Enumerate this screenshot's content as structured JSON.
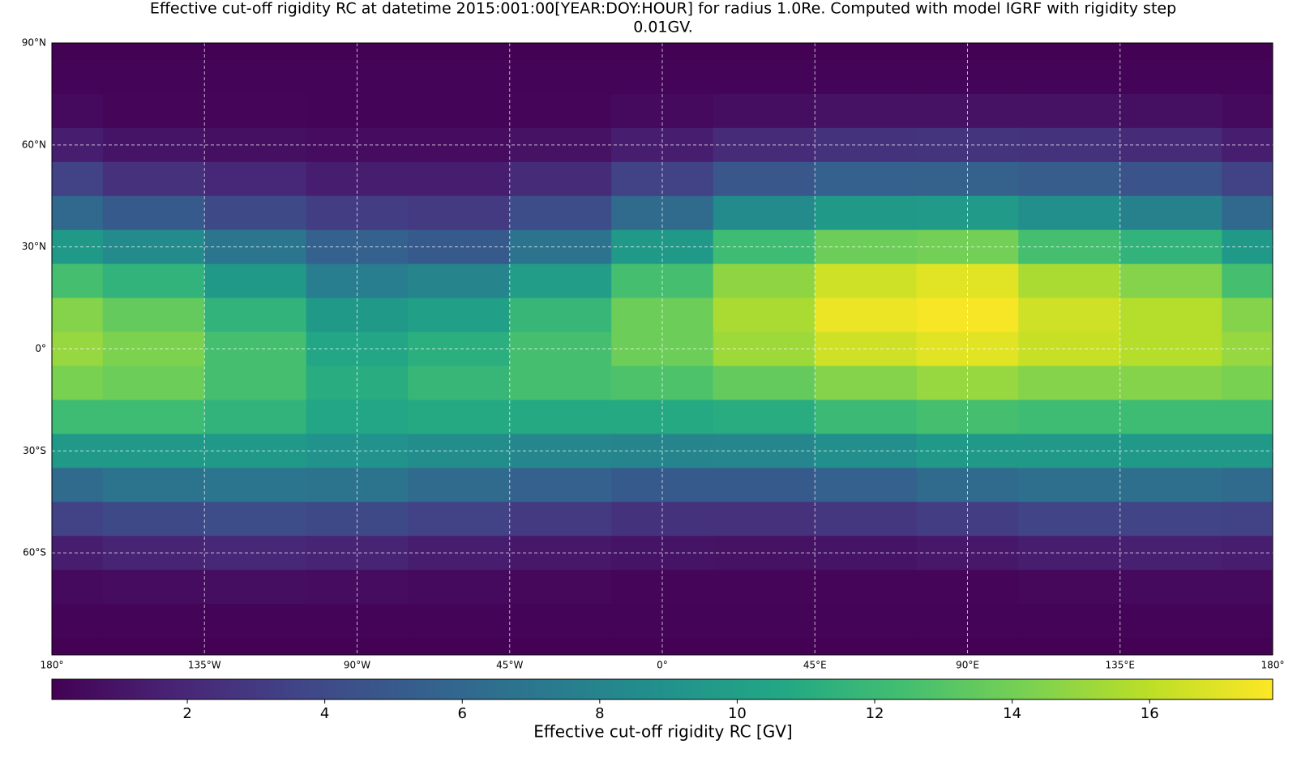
{
  "chart_data": {
    "type": "heatmap",
    "title": [
      "Effective cut-off rigidity RC at datetime 2015:001:00[YEAR:DOY:HOUR] for radius 1.0Re. Computed with model IGRF with rigidity step",
      "0.01GV."
    ],
    "colormap": "viridis",
    "xlim": [
      -180,
      180
    ],
    "ylim": [
      -90,
      90
    ],
    "xticks": [
      {
        "value": -180,
        "label": "180°"
      },
      {
        "value": -135,
        "label": "135°W"
      },
      {
        "value": -90,
        "label": "90°W"
      },
      {
        "value": -45,
        "label": "45°W"
      },
      {
        "value": 0,
        "label": "0°"
      },
      {
        "value": 45,
        "label": "45°E"
      },
      {
        "value": 90,
        "label": "90°E"
      },
      {
        "value": 135,
        "label": "135°E"
      },
      {
        "value": 180,
        "label": "180°"
      }
    ],
    "yticks": [
      {
        "value": 90,
        "label": "90°N"
      },
      {
        "value": 60,
        "label": "60°N"
      },
      {
        "value": 30,
        "label": "30°N"
      },
      {
        "value": 0,
        "label": "0°"
      },
      {
        "value": -30,
        "label": "30°S"
      },
      {
        "value": -60,
        "label": "60°S"
      }
    ],
    "grid": true,
    "lons": [
      -180,
      -150,
      -120,
      -90,
      -60,
      -30,
      0,
      30,
      60,
      90,
      120,
      150,
      180
    ],
    "lats": [
      90,
      80,
      70,
      60,
      50,
      40,
      30,
      20,
      10,
      0,
      -10,
      -20,
      -30,
      -40,
      -50,
      -60,
      -70,
      -80,
      -90
    ],
    "values": [
      [
        0.1,
        0.1,
        0.1,
        0.1,
        0.1,
        0.1,
        0.1,
        0.1,
        0.1,
        0.1,
        0.1,
        0.1,
        0.1
      ],
      [
        0.2,
        0.2,
        0.2,
        0.2,
        0.2,
        0.2,
        0.2,
        0.2,
        0.2,
        0.2,
        0.2,
        0.2,
        0.2
      ],
      [
        0.5,
        0.3,
        0.3,
        0.2,
        0.2,
        0.3,
        0.5,
        0.7,
        0.9,
        0.9,
        0.9,
        0.8,
        0.5
      ],
      [
        1.5,
        1,
        0.8,
        0.6,
        0.6,
        0.9,
        1.5,
        2.2,
        2.6,
        2.7,
        2.6,
        2.2,
        1.5
      ],
      [
        3.5,
        2.5,
        2,
        1.5,
        1.5,
        2.2,
        3.5,
        4.8,
        5.5,
        5.6,
        5.2,
        4.6,
        3.5
      ],
      [
        6,
        5,
        4,
        3.2,
        3,
        4.2,
        6.2,
        8.5,
        9.5,
        9.6,
        8.8,
        7.8,
        6
      ],
      [
        9.5,
        8.5,
        7,
        5.5,
        5,
        6.8,
        9.5,
        12.2,
        13.8,
        14,
        12.5,
        11.5,
        9.5
      ],
      [
        12.5,
        11.5,
        9.5,
        7.5,
        8,
        9.8,
        12.5,
        14.8,
        16.5,
        17,
        15.5,
        14.5,
        12.5
      ],
      [
        14.5,
        13.5,
        11.5,
        9.5,
        10,
        11.8,
        13.8,
        15.5,
        17.3,
        17.6,
        16.5,
        15.8,
        14.5
      ],
      [
        15,
        14.3,
        12.5,
        10.5,
        11.2,
        12.5,
        13.8,
        15.2,
        16.5,
        17,
        16.3,
        15.8,
        15
      ],
      [
        14.2,
        13.8,
        12.5,
        11,
        11.8,
        12.5,
        12.8,
        13.5,
        14.5,
        15,
        14.5,
        14.5,
        14.2
      ],
      [
        12.2,
        12.2,
        11.5,
        10.5,
        10.8,
        10.8,
        10.8,
        11,
        12,
        12.5,
        12.2,
        12.2,
        12.2
      ],
      [
        9.5,
        9.5,
        9.5,
        9,
        8.6,
        8.2,
        8,
        8.2,
        8.8,
        9.5,
        9.5,
        9.5,
        9.5
      ],
      [
        6.2,
        6.8,
        7,
        6.8,
        6.2,
        5.5,
        5,
        5,
        5.5,
        6.2,
        6.5,
        6.5,
        6.2
      ],
      [
        3.5,
        4,
        4.2,
        4,
        3.5,
        3,
        2.6,
        2.5,
        2.8,
        3.2,
        3.6,
        3.6,
        3.5
      ],
      [
        1.5,
        1.8,
        2,
        1.8,
        1.5,
        1.2,
        1,
        0.9,
        1,
        1.2,
        1.5,
        1.6,
        1.5
      ],
      [
        0.5,
        0.6,
        0.7,
        0.6,
        0.5,
        0.4,
        0.3,
        0.3,
        0.3,
        0.3,
        0.4,
        0.5,
        0.5
      ],
      [
        0.2,
        0.2,
        0.2,
        0.2,
        0.2,
        0.2,
        0.2,
        0.2,
        0.2,
        0.2,
        0.2,
        0.2,
        0.2
      ],
      [
        0.1,
        0.1,
        0.1,
        0.1,
        0.1,
        0.1,
        0.1,
        0.1,
        0.1,
        0.1,
        0.1,
        0.1,
        0.1
      ]
    ],
    "colorbar": {
      "label": "Effective cut-off rigidity RC [GV]",
      "lim": [
        0.03,
        17.79
      ],
      "ticks": [
        2,
        4,
        6,
        8,
        10,
        12,
        14,
        16
      ]
    }
  }
}
